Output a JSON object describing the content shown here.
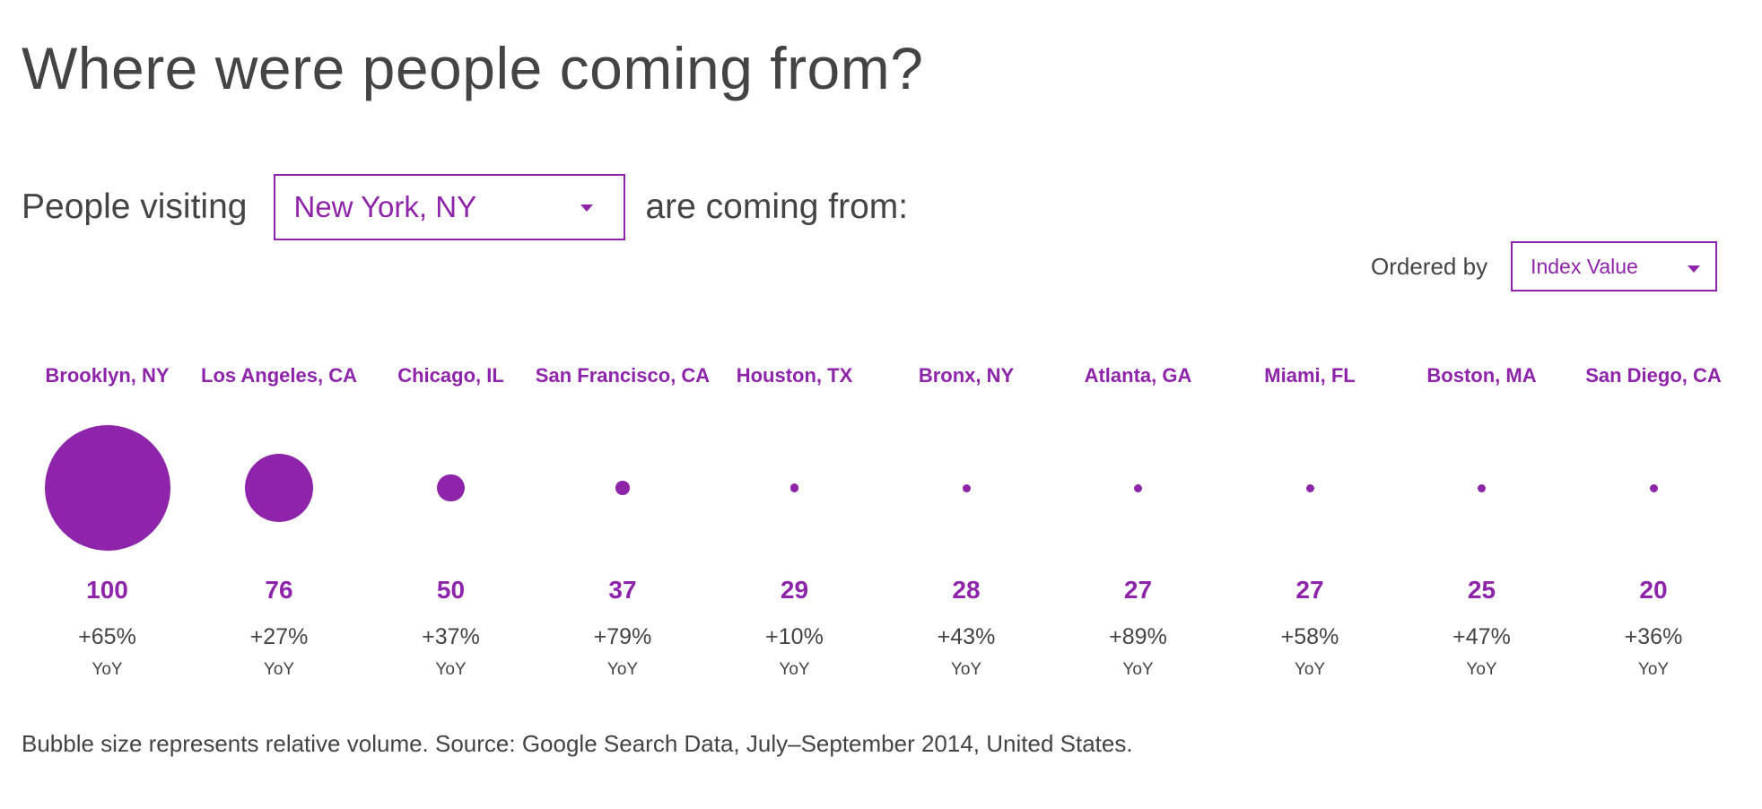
{
  "title": "Where were people coming from?",
  "visiting": {
    "prefix": "People visiting",
    "selected": "New York, NY",
    "suffix": "are coming from:"
  },
  "order": {
    "label": "Ordered by",
    "selected": "Index Value"
  },
  "accent_color": "#8e24aa",
  "cities": [
    {
      "name": "Brooklyn, NY",
      "index": "100",
      "value": 100,
      "yoy": "+65%",
      "yoy_label": "YoY"
    },
    {
      "name": "Los Angeles, CA",
      "index": "76",
      "value": 76,
      "yoy": "+27%",
      "yoy_label": "YoY"
    },
    {
      "name": "Chicago, IL",
      "index": "50",
      "value": 50,
      "yoy": "+37%",
      "yoy_label": "YoY"
    },
    {
      "name": "San Francisco, CA",
      "index": "37",
      "value": 37,
      "yoy": "+79%",
      "yoy_label": "YoY"
    },
    {
      "name": "Houston, TX",
      "index": "29",
      "value": 29,
      "yoy": "+10%",
      "yoy_label": "YoY"
    },
    {
      "name": "Bronx, NY",
      "index": "28",
      "value": 28,
      "yoy": "+43%",
      "yoy_label": "YoY"
    },
    {
      "name": "Atlanta, GA",
      "index": "27",
      "value": 27,
      "yoy": "+89%",
      "yoy_label": "YoY"
    },
    {
      "name": "Miami, FL",
      "index": "27",
      "value": 27,
      "yoy": "+58%",
      "yoy_label": "YoY"
    },
    {
      "name": "Boston, MA",
      "index": "25",
      "value": 25,
      "yoy": "+47%",
      "yoy_label": "YoY"
    },
    {
      "name": "San Diego, CA",
      "index": "20",
      "value": 20,
      "yoy": "+36%",
      "yoy_label": "YoY"
    }
  ],
  "footnote": "Bubble size represents relative volume. Source: Google Search Data, July–September 2014, United States."
}
